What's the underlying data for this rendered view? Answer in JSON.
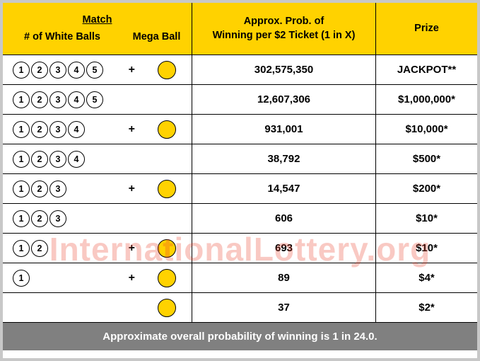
{
  "colors": {
    "header_bg": "#ffd200",
    "footer_bg": "#808080",
    "footer_text": "#ffffff",
    "border": "#c8c8c8",
    "cell_border": "#000000",
    "mega_ball": "#ffd200",
    "white_ball_bg": "#ffffff",
    "watermark": "rgba(235,60,40,0.28)"
  },
  "header": {
    "match": "Match",
    "white_balls": "# of White Balls",
    "mega_ball": "Mega Ball",
    "prob_line1": "Approx. Prob. of",
    "prob_line2": "Winning per $2 Ticket (1 in X)",
    "prize": "Prize"
  },
  "rows": [
    {
      "white": 5,
      "plus": true,
      "mega": true,
      "prob": "302,575,350",
      "prize": "JACKPOT**"
    },
    {
      "white": 5,
      "plus": false,
      "mega": false,
      "prob": "12,607,306",
      "prize": "$1,000,000*"
    },
    {
      "white": 4,
      "plus": true,
      "mega": true,
      "prob": "931,001",
      "prize": "$10,000*"
    },
    {
      "white": 4,
      "plus": false,
      "mega": false,
      "prob": "38,792",
      "prize": "$500*"
    },
    {
      "white": 3,
      "plus": true,
      "mega": true,
      "prob": "14,547",
      "prize": "$200*"
    },
    {
      "white": 3,
      "plus": false,
      "mega": false,
      "prob": "606",
      "prize": "$10*"
    },
    {
      "white": 2,
      "plus": true,
      "mega": true,
      "prob": "693",
      "prize": "$10*"
    },
    {
      "white": 1,
      "plus": true,
      "mega": true,
      "prob": "89",
      "prize": "$4*"
    },
    {
      "white": 0,
      "plus": false,
      "mega": true,
      "prob": "37",
      "prize": "$2*"
    }
  ],
  "footer": "Approximate overall probability of winning is 1 in 24.0.",
  "watermark": "InternationalLottery.org"
}
